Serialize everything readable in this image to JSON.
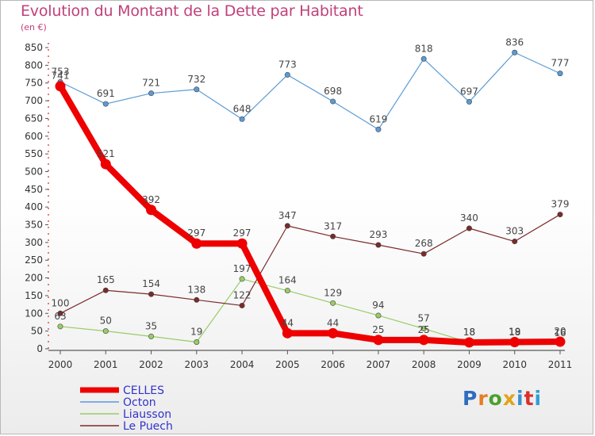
{
  "title": "Evolution du Montant de la Dette par Habitant",
  "unit": "(en €)",
  "logo": {
    "text": "Proxiti",
    "letter_colors": [
      "#2f6cc0",
      "#e77d22",
      "#4aa02c",
      "#e2a21c",
      "#3a8fd0",
      "#d8302a",
      "#2f9fd8"
    ]
  },
  "chart_data": {
    "type": "line",
    "x": [
      "2000",
      "2001",
      "2002",
      "2003",
      "2004",
      "2005",
      "2006",
      "2007",
      "2008",
      "2009",
      "2010",
      "2011"
    ],
    "ylim": [
      0,
      850
    ],
    "yticks": [
      0,
      50,
      100,
      150,
      200,
      250,
      300,
      350,
      400,
      450,
      500,
      550,
      600,
      650,
      700,
      750,
      800,
      850
    ],
    "grid": false,
    "legend_position": "bottom-left",
    "series": [
      {
        "name": "CELLES",
        "color": "#ee0000",
        "values": [
          741,
          521,
          392,
          297,
          297,
          44,
          44,
          25,
          25,
          18,
          19,
          20
        ],
        "labels": [
          "741",
          "521",
          "392",
          "297",
          "297",
          "44",
          "44",
          "25",
          "25",
          "18",
          "19",
          "20"
        ]
      },
      {
        "name": "Octon",
        "color": "#5b9bd5",
        "values": [
          753,
          691,
          721,
          732,
          648,
          773,
          698,
          619,
          818,
          697,
          836,
          777
        ],
        "labels": [
          "753",
          "691",
          "721",
          "732",
          "648",
          "773",
          "698",
          "619",
          "818",
          "697",
          "836",
          "777"
        ]
      },
      {
        "name": "Liausson",
        "color": "#99cc66",
        "values": [
          63,
          50,
          35,
          19,
          197,
          164,
          129,
          94,
          57,
          18,
          18,
          16
        ],
        "labels": [
          "63",
          "50",
          "35",
          "19",
          "197",
          "164",
          "129",
          "94",
          "57",
          "18",
          "18",
          "16"
        ]
      },
      {
        "name": "Le Puech",
        "color": "#7b2a2a",
        "values": [
          100,
          165,
          154,
          138,
          122,
          347,
          317,
          293,
          268,
          340,
          303,
          379
        ],
        "labels": [
          "100",
          "165",
          "154",
          "138",
          "122",
          "347",
          "317",
          "293",
          "268",
          "340",
          "303",
          "379"
        ]
      }
    ]
  }
}
